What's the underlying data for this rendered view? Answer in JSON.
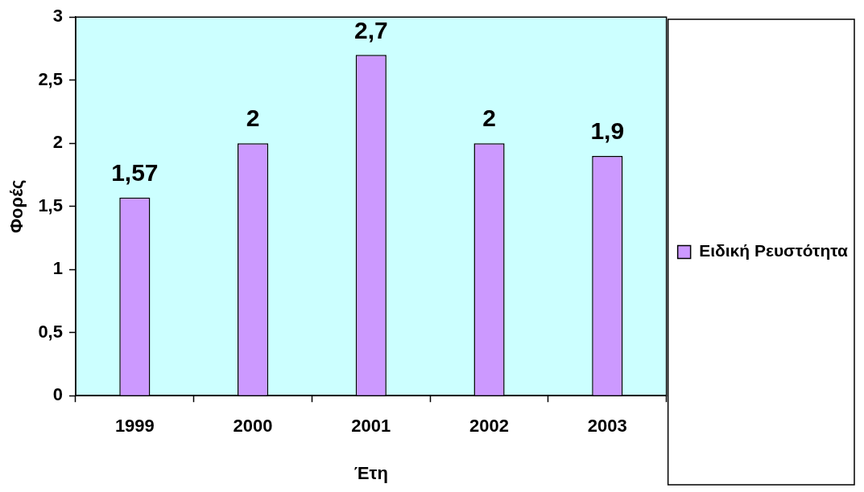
{
  "chart_data": {
    "type": "bar",
    "xlabel": "Έτη",
    "ylabel": "Φορές",
    "categories": [
      "1999",
      "2000",
      "2001",
      "2002",
      "2003"
    ],
    "series": [
      {
        "name": "Ειδική Ρευστότητα",
        "color": "#cc99ff",
        "values": [
          1.57,
          2,
          2.7,
          2,
          1.9
        ],
        "value_labels": [
          "1,57",
          "2",
          "2,7",
          "2",
          "1,9"
        ]
      }
    ],
    "ylim": [
      0,
      3
    ],
    "yticks": [
      0,
      {
        "value": 0.5,
        "label": "0,5"
      },
      1,
      {
        "value": 1.5,
        "label": "1,5"
      },
      2,
      {
        "value": 2.5,
        "label": "2,5"
      },
      3
    ],
    "grid": false,
    "legend": "right"
  }
}
